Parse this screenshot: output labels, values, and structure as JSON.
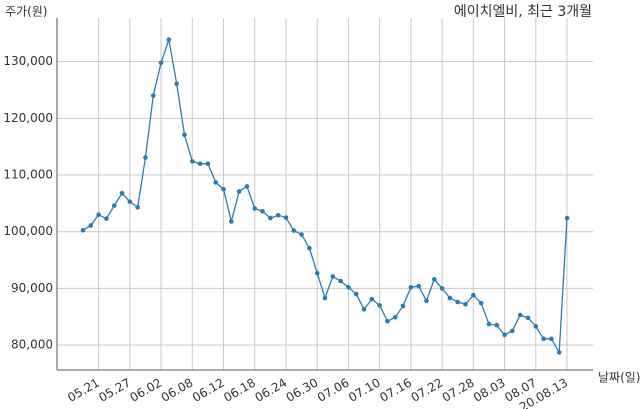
{
  "chart_data": {
    "type": "line",
    "title": "에이치엘비, 최근 3개월",
    "y_label": "주가(원)",
    "x_label": "날짜(일)",
    "color": "#2b7bb3",
    "grid": true,
    "categories": [
      null,
      null,
      "05.21",
      null,
      null,
      null,
      "05.27",
      null,
      null,
      null,
      "06.02",
      null,
      null,
      null,
      "06.08",
      null,
      null,
      null,
      "06.12",
      null,
      null,
      null,
      "06.18",
      null,
      null,
      null,
      "06.24",
      null,
      null,
      null,
      "06.30",
      null,
      null,
      null,
      "07.06",
      null,
      null,
      null,
      "07.10",
      null,
      null,
      null,
      "07.16",
      null,
      null,
      null,
      "07.22",
      null,
      null,
      null,
      "07.28",
      null,
      null,
      null,
      "08.03",
      null,
      null,
      null,
      "08.07",
      null,
      null,
      null,
      "20.08.13"
    ],
    "values": [
      100250,
      101100,
      103000,
      102300,
      104600,
      106800,
      105300,
      104300,
      113100,
      124000,
      129800,
      133900,
      126100,
      117100,
      112400,
      112000,
      112000,
      108700,
      107500,
      101800,
      107100,
      108000,
      104100,
      103600,
      102400,
      102900,
      102500,
      100200,
      99500,
      97100,
      92700,
      88300,
      92100,
      91300,
      90200,
      89000,
      86300,
      88100,
      87000,
      84200,
      84900,
      86900,
      90200,
      90400,
      87800,
      91600,
      90000,
      88300,
      87600,
      87200,
      88800,
      87400,
      83700,
      83500,
      81800,
      82500,
      85300,
      84800,
      83300,
      81100,
      81100,
      78700,
      102400
    ],
    "ylim": [
      75600,
      140000
    ],
    "yticks": [
      {
        "value": 80000,
        "label": "80,000"
      },
      {
        "value": 90000,
        "label": "90,000"
      },
      {
        "value": 100000,
        "label": "100,000"
      },
      {
        "value": 110000,
        "label": "110,000"
      },
      {
        "value": 120000,
        "label": "120,000"
      },
      {
        "value": 130000,
        "label": "130,000"
      }
    ]
  }
}
